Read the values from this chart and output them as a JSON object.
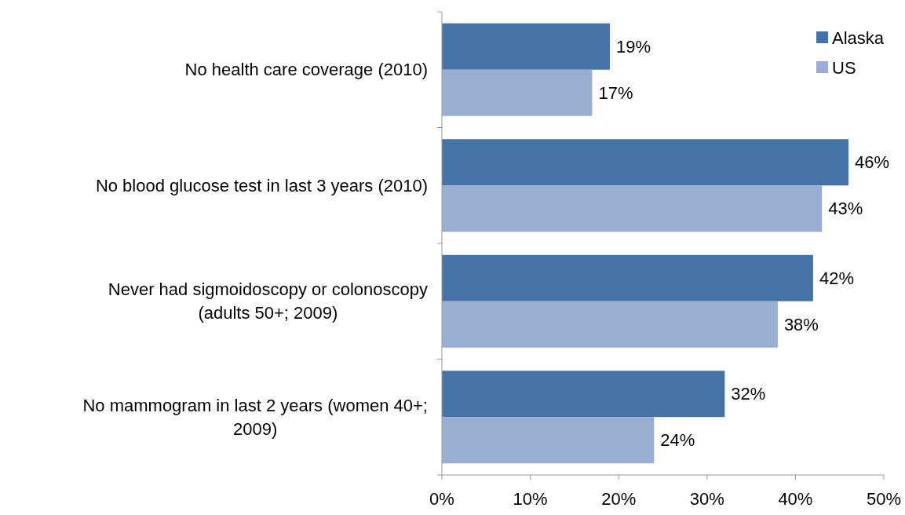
{
  "chart_data": {
    "type": "bar",
    "orientation": "horizontal",
    "categories": [
      "No health care coverage (2010)",
      "No blood glucose test in last 3 years (2010)",
      "Never had sigmoidoscopy or colonoscopy (adults 50+; 2009)",
      "No mammogram in last 2 years (women 40+; 2009)"
    ],
    "series": [
      {
        "name": "Alaska",
        "color": "#4573a7",
        "values": [
          19,
          46,
          42,
          32
        ],
        "value_labels": [
          "19%",
          "46%",
          "42%",
          "32%"
        ]
      },
      {
        "name": "US",
        "color": "#98aed3",
        "values": [
          17,
          43,
          38,
          24
        ],
        "value_labels": [
          "17%",
          "43%",
          "38%",
          "24%"
        ]
      }
    ],
    "xlim": [
      0,
      50
    ],
    "xticks": [
      {
        "value": 0,
        "label": "0%"
      },
      {
        "value": 10,
        "label": "10%"
      },
      {
        "value": 20,
        "label": "20%"
      },
      {
        "value": 30,
        "label": "30%"
      },
      {
        "value": 40,
        "label": "40%"
      },
      {
        "value": 50,
        "label": "50%"
      }
    ],
    "legend": "top right",
    "grid": false
  }
}
